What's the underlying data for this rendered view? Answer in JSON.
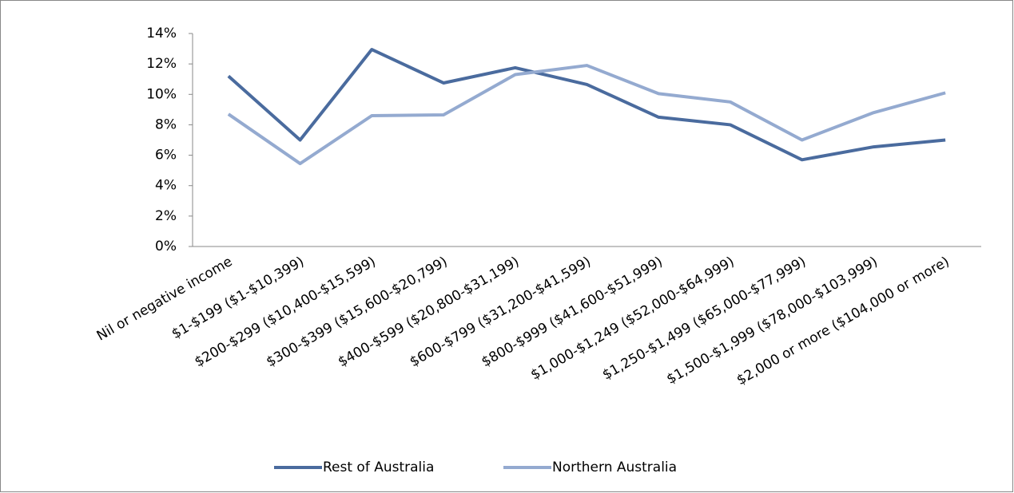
{
  "chart_data": {
    "type": "line",
    "categories": [
      "Nil or negative income",
      "$1-$199 ($1-$10,399)",
      "$200-$299 ($10,400-$15,599)",
      "$300-$399 ($15,600-$20,799)",
      "$400-$599 ($20,800-$31,199)",
      "$600-$799 ($31,200-$41,599)",
      "$800-$999 ($41,600-$51,999)",
      "$1,000-$1,249 ($52,000-$64,999)",
      "$1,250-$1,499 ($65,000-$77,999)",
      "$1,500-$1,999 ($78,000-$103,999)",
      "$2,000 or more ($104,000 or more)"
    ],
    "series": [
      {
        "name": "Rest of Australia",
        "color": "#4a6b9e",
        "values": [
          11.2,
          7.0,
          12.95,
          10.75,
          11.75,
          10.65,
          8.5,
          8.0,
          5.7,
          6.55,
          7.0
        ]
      },
      {
        "name": "Northern Australia",
        "color": "#94aad0",
        "values": [
          8.7,
          5.45,
          8.6,
          8.65,
          11.3,
          11.9,
          10.05,
          9.5,
          7.0,
          8.8,
          10.1
        ]
      }
    ],
    "ylim": [
      0,
      14
    ],
    "yticks": [
      {
        "value": 0,
        "label": "0%"
      },
      {
        "value": 2,
        "label": "2%"
      },
      {
        "value": 4,
        "label": "4%"
      },
      {
        "value": 6,
        "label": "6%"
      },
      {
        "value": 8,
        "label": "8%"
      },
      {
        "value": 10,
        "label": "10%"
      },
      {
        "value": 12,
        "label": "12%"
      },
      {
        "value": 14,
        "label": "14%"
      }
    ],
    "grid": false,
    "legend": "bottom"
  }
}
